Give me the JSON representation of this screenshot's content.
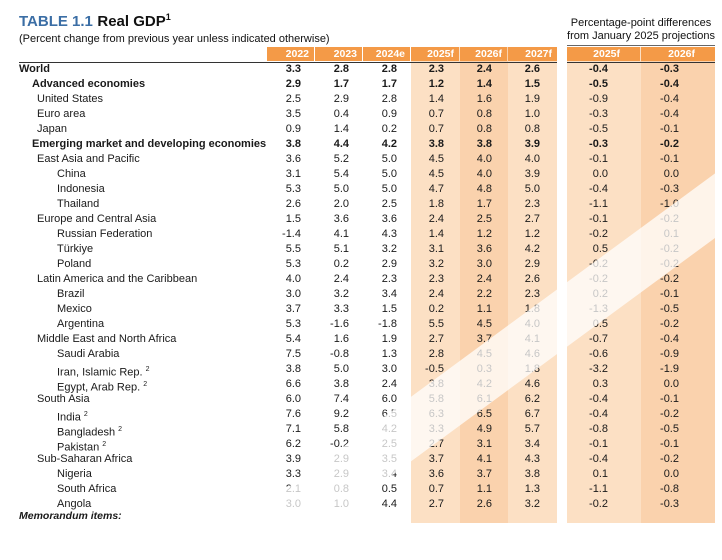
{
  "title": {
    "label": "TABLE 1.1",
    "name": "Real GDP",
    "sup": "1"
  },
  "subtitle": "(Percent change from previous year unless indicated otherwise)",
  "projection_header": [
    "Percentage-point differences",
    "from January 2025 projections"
  ],
  "columns": [
    "2022",
    "2023",
    "2024e",
    "2025f",
    "2026f",
    "2027f"
  ],
  "diff_columns": [
    "2025f",
    "2026f"
  ],
  "rows": [
    {
      "label": "World",
      "sup": "",
      "level": 0,
      "bold": true,
      "values": [
        "3.3",
        "2.8",
        "2.8",
        "2.3",
        "2.4",
        "2.6"
      ],
      "diffs": [
        "-0.4",
        "-0.3"
      ]
    },
    {
      "label": "Advanced economies",
      "sup": "",
      "level": 1,
      "bold": true,
      "values": [
        "2.9",
        "1.7",
        "1.7",
        "1.2",
        "1.4",
        "1.5"
      ],
      "diffs": [
        "-0.5",
        "-0.4"
      ]
    },
    {
      "label": "United States",
      "sup": "",
      "level": 2,
      "bold": false,
      "values": [
        "2.5",
        "2.9",
        "2.8",
        "1.4",
        "1.6",
        "1.9"
      ],
      "diffs": [
        "-0.9",
        "-0.4"
      ]
    },
    {
      "label": "Euro area",
      "sup": "",
      "level": 2,
      "bold": false,
      "values": [
        "3.5",
        "0.4",
        "0.9",
        "0.7",
        "0.8",
        "1.0"
      ],
      "diffs": [
        "-0.3",
        "-0.4"
      ]
    },
    {
      "label": "Japan",
      "sup": "",
      "level": 2,
      "bold": false,
      "values": [
        "0.9",
        "1.4",
        "0.2",
        "0.7",
        "0.8",
        "0.8"
      ],
      "diffs": [
        "-0.5",
        "-0.1"
      ]
    },
    {
      "label": "Emerging market and developing economies",
      "sup": "",
      "level": 1,
      "bold": true,
      "values": [
        "3.8",
        "4.4",
        "4.2",
        "3.8",
        "3.8",
        "3.9"
      ],
      "diffs": [
        "-0.3",
        "-0.2"
      ]
    },
    {
      "label": "East Asia and Pacific",
      "sup": "",
      "level": 2,
      "bold": false,
      "values": [
        "3.6",
        "5.2",
        "5.0",
        "4.5",
        "4.0",
        "4.0"
      ],
      "diffs": [
        "-0.1",
        "-0.1"
      ]
    },
    {
      "label": "China",
      "sup": "",
      "level": 3,
      "bold": false,
      "values": [
        "3.1",
        "5.4",
        "5.0",
        "4.5",
        "4.0",
        "3.9"
      ],
      "diffs": [
        "0.0",
        "0.0"
      ]
    },
    {
      "label": "Indonesia",
      "sup": "",
      "level": 3,
      "bold": false,
      "values": [
        "5.3",
        "5.0",
        "5.0",
        "4.7",
        "4.8",
        "5.0"
      ],
      "diffs": [
        "-0.4",
        "-0.3"
      ]
    },
    {
      "label": "Thailand",
      "sup": "",
      "level": 3,
      "bold": false,
      "values": [
        "2.6",
        "2.0",
        "2.5",
        "1.8",
        "1.7",
        "2.3"
      ],
      "diffs": [
        "-1.1",
        "-1.0"
      ]
    },
    {
      "label": "Europe and Central Asia",
      "sup": "",
      "level": 2,
      "bold": false,
      "values": [
        "1.5",
        "3.6",
        "3.6",
        "2.4",
        "2.5",
        "2.7"
      ],
      "diffs": [
        "-0.1",
        "-0.2"
      ]
    },
    {
      "label": "Russian Federation",
      "sup": "",
      "level": 3,
      "bold": false,
      "values": [
        "-1.4",
        "4.1",
        "4.3",
        "1.4",
        "1.2",
        "1.2"
      ],
      "diffs": [
        "-0.2",
        "0.1"
      ]
    },
    {
      "label": "Türkiye",
      "sup": "",
      "level": 3,
      "bold": false,
      "values": [
        "5.5",
        "5.1",
        "3.2",
        "3.1",
        "3.6",
        "4.2"
      ],
      "diffs": [
        "0.5",
        "-0.2"
      ]
    },
    {
      "label": "Poland",
      "sup": "",
      "level": 3,
      "bold": false,
      "values": [
        "5.3",
        "0.2",
        "2.9",
        "3.2",
        "3.0",
        "2.9"
      ],
      "diffs": [
        "-0.2",
        "-0.2"
      ]
    },
    {
      "label": "Latin America and the Caribbean",
      "sup": "",
      "level": 2,
      "bold": false,
      "values": [
        "4.0",
        "2.4",
        "2.3",
        "2.3",
        "2.4",
        "2.6"
      ],
      "diffs": [
        "-0.2",
        "-0.2"
      ]
    },
    {
      "label": "Brazil",
      "sup": "",
      "level": 3,
      "bold": false,
      "values": [
        "3.0",
        "3.2",
        "3.4",
        "2.4",
        "2.2",
        "2.3"
      ],
      "diffs": [
        "0.2",
        "-0.1"
      ]
    },
    {
      "label": "Mexico",
      "sup": "",
      "level": 3,
      "bold": false,
      "values": [
        "3.7",
        "3.3",
        "1.5",
        "0.2",
        "1.1",
        "1.8"
      ],
      "diffs": [
        "-1.3",
        "-0.5"
      ]
    },
    {
      "label": "Argentina",
      "sup": "",
      "level": 3,
      "bold": false,
      "values": [
        "5.3",
        "-1.6",
        "-1.8",
        "5.5",
        "4.5",
        "4.0"
      ],
      "diffs": [
        "0.5",
        "-0.2"
      ]
    },
    {
      "label": "Middle East and North Africa",
      "sup": "",
      "level": 2,
      "bold": false,
      "values": [
        "5.4",
        "1.6",
        "1.9",
        "2.7",
        "3.7",
        "4.1"
      ],
      "diffs": [
        "-0.7",
        "-0.4"
      ]
    },
    {
      "label": "Saudi Arabia",
      "sup": "",
      "level": 3,
      "bold": false,
      "values": [
        "7.5",
        "-0.8",
        "1.3",
        "2.8",
        "4.5",
        "4.6"
      ],
      "diffs": [
        "-0.6",
        "-0.9"
      ]
    },
    {
      "label": "Iran, Islamic Rep.",
      "sup": "2",
      "level": 3,
      "bold": false,
      "values": [
        "3.8",
        "5.0",
        "3.0",
        "-0.5",
        "0.3",
        "1.8"
      ],
      "diffs": [
        "-3.2",
        "-1.9"
      ]
    },
    {
      "label": "Egypt, Arab Rep.",
      "sup": "2",
      "level": 3,
      "bold": false,
      "values": [
        "6.6",
        "3.8",
        "2.4",
        "3.8",
        "4.2",
        "4.6"
      ],
      "diffs": [
        "0.3",
        "0.0"
      ]
    },
    {
      "label": "South Asia",
      "sup": "",
      "level": 2,
      "bold": false,
      "values": [
        "6.0",
        "7.4",
        "6.0",
        "5.8",
        "6.1",
        "6.2"
      ],
      "diffs": [
        "-0.4",
        "-0.1"
      ]
    },
    {
      "label": "India",
      "sup": "2",
      "level": 3,
      "bold": false,
      "values": [
        "7.6",
        "9.2",
        "6.5",
        "6.3",
        "6.5",
        "6.7"
      ],
      "diffs": [
        "-0.4",
        "-0.2"
      ]
    },
    {
      "label": "Bangladesh",
      "sup": "2",
      "level": 3,
      "bold": false,
      "values": [
        "7.1",
        "5.8",
        "4.2",
        "3.3",
        "4.9",
        "5.7"
      ],
      "diffs": [
        "-0.8",
        "-0.5"
      ]
    },
    {
      "label": "Pakistan",
      "sup": "2",
      "level": 3,
      "bold": false,
      "values": [
        "6.2",
        "-0.2",
        "2.5",
        "2.7",
        "3.1",
        "3.4"
      ],
      "diffs": [
        "-0.1",
        "-0.1"
      ]
    },
    {
      "label": "Sub-Saharan Africa",
      "sup": "",
      "level": 2,
      "bold": false,
      "values": [
        "3.9",
        "2.9",
        "3.5",
        "3.7",
        "4.1",
        "4.3"
      ],
      "diffs": [
        "-0.4",
        "-0.2"
      ]
    },
    {
      "label": "Nigeria",
      "sup": "",
      "level": 3,
      "bold": false,
      "values": [
        "3.3",
        "2.9",
        "3.4",
        "3.6",
        "3.7",
        "3.8"
      ],
      "diffs": [
        "0.1",
        "0.0"
      ]
    },
    {
      "label": "South Africa",
      "sup": "",
      "level": 3,
      "bold": false,
      "values": [
        "2.1",
        "0.8",
        "0.5",
        "0.7",
        "1.1",
        "1.3"
      ],
      "diffs": [
        "-1.1",
        "-0.8"
      ]
    },
    {
      "label": "Angola",
      "sup": "",
      "level": 3,
      "bold": false,
      "values": [
        "3.0",
        "1.0",
        "4.4",
        "2.7",
        "2.6",
        "3.2"
      ],
      "diffs": [
        "-0.2",
        "-0.3"
      ]
    }
  ],
  "memo": "Memorandum items:",
  "colors": {
    "header_orange": "#f49a47",
    "shade_light": "#fce0c4",
    "shade_dark": "#fad2ad",
    "title_blue": "#3b6ea5"
  }
}
